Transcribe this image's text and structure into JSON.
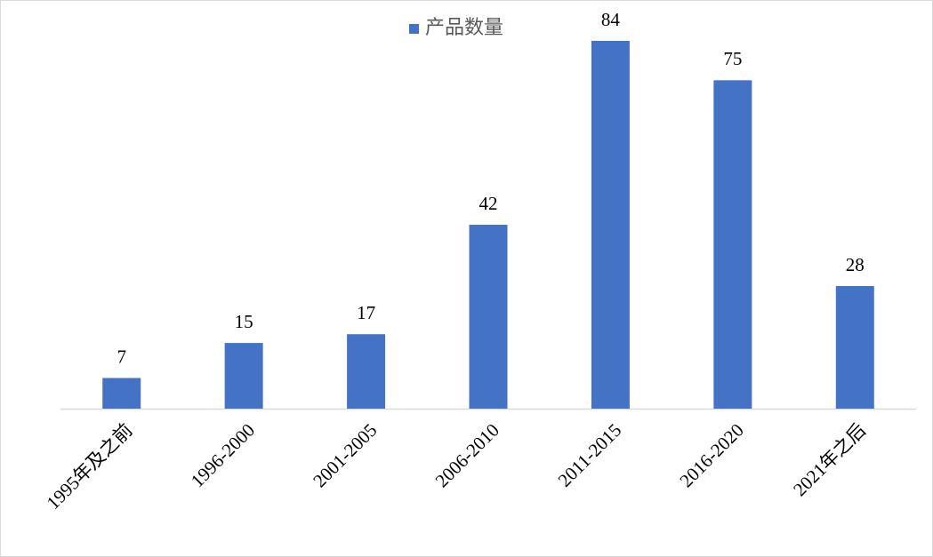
{
  "chart_data": {
    "type": "bar",
    "categories": [
      "1995年及之前",
      "1996-2000",
      "2001-2005",
      "2006-2010",
      "2011-2015",
      "2016-2020",
      "2021年之后"
    ],
    "series": [
      {
        "name": "产品数量",
        "color": "#4472c4",
        "values": [
          7,
          15,
          17,
          42,
          84,
          75,
          28
        ]
      }
    ],
    "legend": "top",
    "data_labels": true
  }
}
